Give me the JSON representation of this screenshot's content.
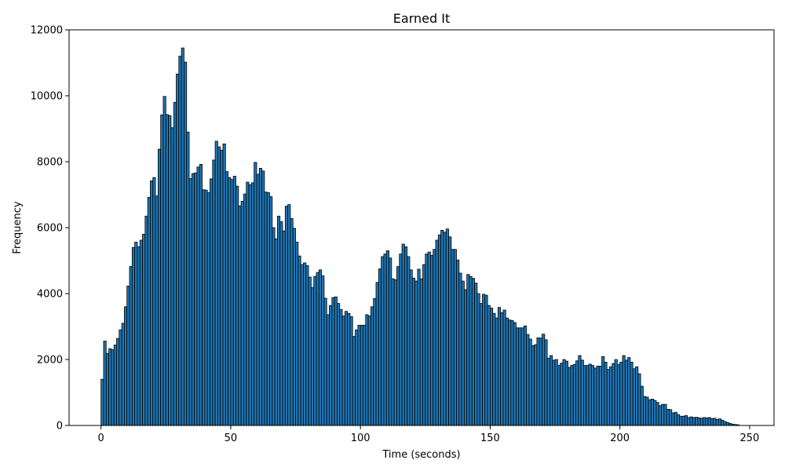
{
  "chart_data": {
    "type": "bar",
    "subtype": "histogram",
    "title": "Earned It",
    "xlabel": "Time (seconds)",
    "ylabel": "Frequency",
    "xlim": [
      -12.3,
      259.4
    ],
    "ylim": [
      0,
      12000
    ],
    "xticks": [
      0,
      50,
      100,
      150,
      200,
      250
    ],
    "yticks": [
      0,
      2000,
      4000,
      6000,
      8000,
      10000,
      12000
    ],
    "bin_start": 0,
    "bin_width": 1,
    "grid": false,
    "legend": "none",
    "bar_color": "#1f77b4",
    "edge_color": "#000000",
    "values": [
      1400,
      2560,
      2180,
      2330,
      2300,
      2440,
      2640,
      2900,
      3100,
      3600,
      4230,
      4820,
      5400,
      5560,
      5420,
      5620,
      5800,
      6350,
      6920,
      7420,
      7520,
      6960,
      8380,
      9420,
      9980,
      9430,
      9400,
      9030,
      9800,
      10660,
      11200,
      11450,
      11020,
      8900,
      7490,
      7640,
      7660,
      7840,
      7920,
      7150,
      7140,
      7060,
      7480,
      8050,
      8620,
      8450,
      8350,
      8540,
      7700,
      7520,
      7460,
      7560,
      7260,
      6660,
      6800,
      7020,
      7380,
      7300,
      7360,
      7980,
      7620,
      7800,
      7720,
      7080,
      7060,
      6940,
      6000,
      5660,
      6350,
      6180,
      5900,
      6650,
      6700,
      6280,
      5980,
      5560,
      5140,
      4880,
      4930,
      4850,
      4500,
      4180,
      4520,
      4640,
      4720,
      4540,
      3860,
      3360,
      3640,
      3880,
      3900,
      3700,
      3520,
      3320,
      3460,
      3400,
      3300,
      2700,
      2900,
      3040,
      3040,
      3040,
      3360,
      3320,
      3600,
      3850,
      4340,
      4750,
      5120,
      5200,
      5300,
      5080,
      4450,
      4420,
      4820,
      5200,
      5500,
      5420,
      5120,
      4720,
      4470,
      4380,
      4740,
      4450,
      4880,
      5200,
      5260,
      5160,
      5340,
      5620,
      5780,
      5920,
      5860,
      5960,
      5720,
      5340,
      5340,
      5020,
      4620,
      4380,
      4120,
      4580,
      4520,
      4460,
      4320,
      4000,
      3700,
      3980,
      3950,
      3640,
      3560,
      3400,
      3260,
      3580,
      3420,
      3500,
      3260,
      3200,
      3180,
      3120,
      2960,
      2960,
      2960,
      3020,
      2760,
      2620,
      2420,
      2450,
      2660,
      2650,
      2770,
      2600,
      2040,
      2120,
      1980,
      2000,
      1820,
      1890,
      2000,
      1950,
      1760,
      1820,
      1850,
      1960,
      2120,
      1980,
      1820,
      1820,
      1860,
      1820,
      1740,
      1800,
      1800,
      2090,
      1920,
      1700,
      1780,
      1880,
      2000,
      1850,
      1920,
      2120,
      1980,
      2060,
      1920,
      1720,
      1780,
      1570,
      1190,
      880,
      860,
      780,
      800,
      760,
      700,
      600,
      640,
      640,
      490,
      480,
      380,
      400,
      330,
      280,
      280,
      300,
      240,
      260,
      240,
      250,
      230,
      220,
      240,
      230,
      240,
      210,
      220,
      180,
      200,
      160,
      120,
      90,
      60,
      40,
      30,
      20
    ]
  }
}
